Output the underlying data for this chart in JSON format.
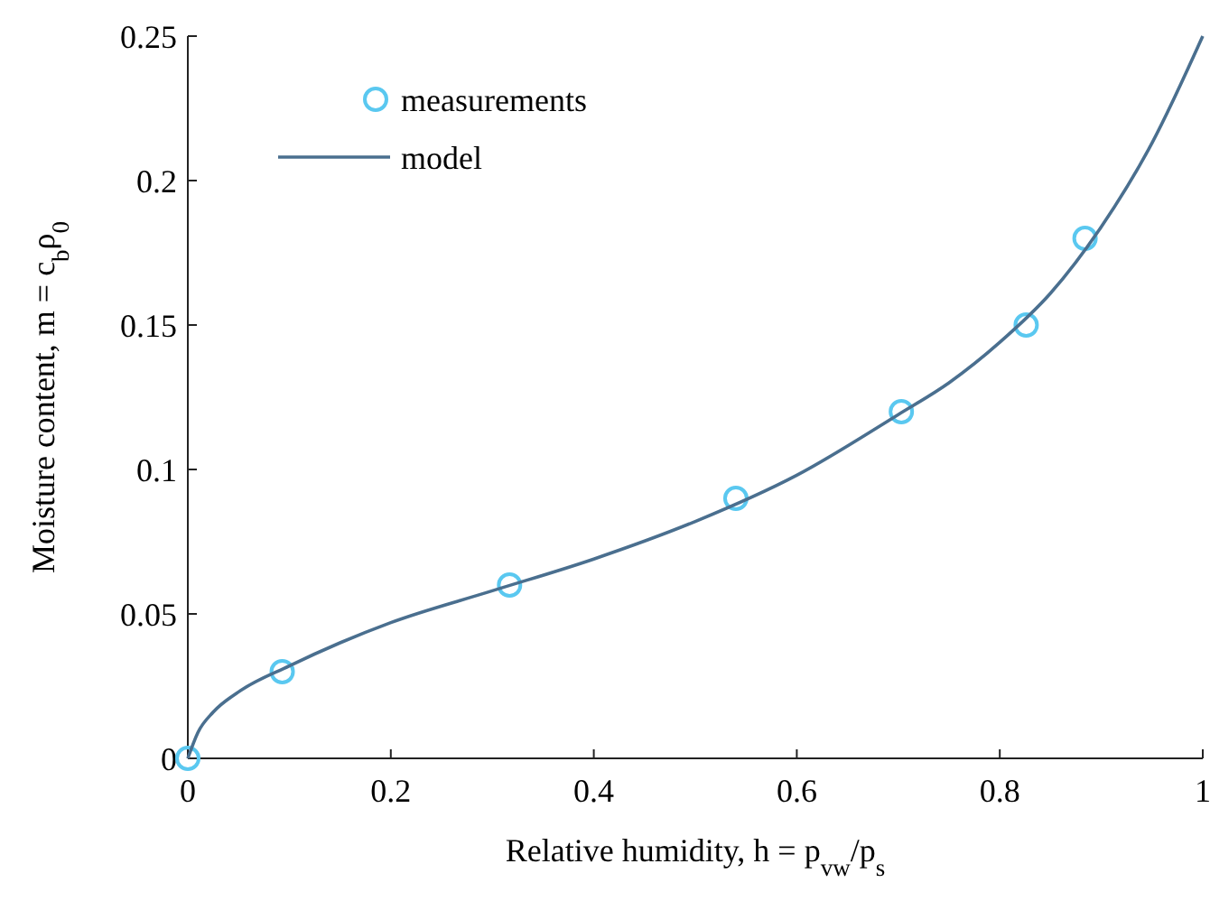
{
  "chart_data": {
    "type": "scatter",
    "xlabel": "Relative humidity,  h = p$_{vw}$/p$_{s}$",
    "ylabel": "Moisture content,  m = c$_{b}$ρ$_{0}$",
    "xlim": [
      0,
      1
    ],
    "ylim": [
      0,
      0.25
    ],
    "xticks": [
      0,
      0.2,
      0.4,
      0.6,
      0.8,
      1
    ],
    "yticks": [
      0,
      0.05,
      0.1,
      0.15,
      0.2,
      0.25
    ],
    "grid": false,
    "legend": "top left",
    "series": [
      {
        "name": "measurements",
        "marker": "circle",
        "color": "#5ac8f0",
        "x": [
          0,
          0.093,
          0.317,
          0.54,
          0.703,
          0.826,
          0.884
        ],
        "values": [
          0,
          0.03,
          0.06,
          0.09,
          0.12,
          0.15,
          0.18
        ]
      },
      {
        "name": "model",
        "type": "line",
        "line_style": "solid",
        "color": "#4a6f8f",
        "x": [
          0,
          0.01,
          0.025,
          0.05,
          0.1,
          0.15,
          0.2,
          0.3,
          0.4,
          0.5,
          0.6,
          0.7,
          0.75,
          0.8,
          0.85,
          0.9,
          0.95,
          1
        ],
        "values": [
          0,
          0.009,
          0.016,
          0.023,
          0.032,
          0.04,
          0.047,
          0.058,
          0.069,
          0.082,
          0.098,
          0.119,
          0.13,
          0.144,
          0.161,
          0.184,
          0.213,
          0.25
        ]
      }
    ]
  }
}
